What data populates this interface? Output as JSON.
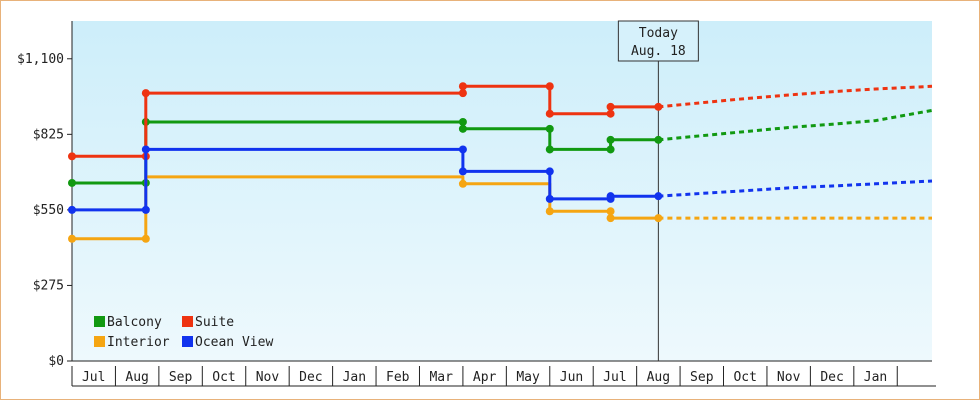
{
  "chart_data": {
    "type": "line",
    "title": "",
    "xlabel": "",
    "ylabel": "",
    "ylim": [
      0,
      1237.5
    ],
    "y_ticks": [
      {
        "value": 0,
        "label": "$0"
      },
      {
        "value": 275,
        "label": "$275"
      },
      {
        "value": 550,
        "label": "$550"
      },
      {
        "value": 825,
        "label": "$825"
      },
      {
        "value": 1100,
        "label": "$1,100"
      }
    ],
    "x_months": [
      "Jul",
      "Aug",
      "Sep",
      "Oct",
      "Nov",
      "Dec",
      "Jan",
      "Feb",
      "Mar",
      "Apr",
      "May",
      "Jun",
      "Jul",
      "Aug",
      "Sep",
      "Oct",
      "Nov",
      "Dec",
      "Jan"
    ],
    "x_range": [
      -0.5,
      19.3
    ],
    "grid": false,
    "legend_position": "bottom-left",
    "today": {
      "line1": "Today",
      "line2": "Aug. 18",
      "x": 13.0
    },
    "series": [
      {
        "name": "Balcony",
        "color": "#119911",
        "points": [
          [
            -0.5,
            648
          ],
          [
            1.2,
            648
          ],
          [
            1.2,
            648
          ],
          [
            1.2,
            870
          ],
          [
            8.5,
            870
          ],
          [
            8.5,
            845
          ],
          [
            10.5,
            845
          ],
          [
            10.5,
            770
          ],
          [
            11.9,
            770
          ],
          [
            11.9,
            805
          ],
          [
            13.0,
            805
          ]
        ],
        "markers": [
          [
            -0.5,
            648
          ],
          [
            1.2,
            648
          ],
          [
            1.2,
            870
          ],
          [
            8.5,
            870
          ],
          [
            8.5,
            845
          ],
          [
            10.5,
            845
          ],
          [
            10.5,
            770
          ],
          [
            11.9,
            770
          ],
          [
            11.9,
            805
          ],
          [
            13.0,
            805
          ]
        ],
        "forecast": [
          [
            13.0,
            805
          ],
          [
            14,
            820
          ],
          [
            15,
            835
          ],
          [
            16,
            850
          ],
          [
            17,
            862
          ],
          [
            18,
            875
          ],
          [
            19.3,
            912
          ]
        ]
      },
      {
        "name": "Suite",
        "color": "#ee3311",
        "points": [
          [
            -0.5,
            745
          ],
          [
            1.2,
            745
          ],
          [
            1.2,
            975
          ],
          [
            8.5,
            975
          ],
          [
            8.5,
            1000
          ],
          [
            10.5,
            1000
          ],
          [
            10.5,
            900
          ],
          [
            11.9,
            900
          ],
          [
            11.9,
            925
          ],
          [
            13.0,
            925
          ]
        ],
        "markers": [
          [
            -0.5,
            745
          ],
          [
            1.2,
            745
          ],
          [
            1.2,
            975
          ],
          [
            8.5,
            975
          ],
          [
            8.5,
            1000
          ],
          [
            10.5,
            1000
          ],
          [
            10.5,
            900
          ],
          [
            11.9,
            900
          ],
          [
            11.9,
            925
          ],
          [
            13.0,
            925
          ]
        ],
        "forecast": [
          [
            13.0,
            925
          ],
          [
            14,
            940
          ],
          [
            15,
            955
          ],
          [
            16,
            968
          ],
          [
            17,
            980
          ],
          [
            18,
            990
          ],
          [
            19.3,
            1000
          ]
        ]
      },
      {
        "name": "Interior",
        "color": "#f5a512",
        "points": [
          [
            -0.5,
            445
          ],
          [
            1.2,
            445
          ],
          [
            1.2,
            670
          ],
          [
            8.5,
            670
          ],
          [
            8.5,
            645
          ],
          [
            10.5,
            645
          ],
          [
            10.5,
            545
          ],
          [
            11.9,
            545
          ],
          [
            11.9,
            520
          ],
          [
            13.0,
            520
          ]
        ],
        "markers": [
          [
            -0.5,
            445
          ],
          [
            1.2,
            445
          ],
          [
            8.5,
            645
          ],
          [
            10.5,
            545
          ],
          [
            11.9,
            545
          ],
          [
            11.9,
            520
          ],
          [
            13.0,
            520
          ]
        ],
        "forecast": [
          [
            13.0,
            520
          ],
          [
            19.3,
            520
          ]
        ]
      },
      {
        "name": "Ocean View",
        "color": "#1133ee",
        "points": [
          [
            -0.5,
            550
          ],
          [
            1.2,
            550
          ],
          [
            1.2,
            770
          ],
          [
            8.5,
            770
          ],
          [
            8.5,
            690
          ],
          [
            10.5,
            690
          ],
          [
            10.5,
            590
          ],
          [
            11.9,
            590
          ],
          [
            11.9,
            600
          ],
          [
            13.0,
            600
          ]
        ],
        "markers": [
          [
            -0.5,
            550
          ],
          [
            1.2,
            550
          ],
          [
            1.2,
            770
          ],
          [
            8.5,
            770
          ],
          [
            8.5,
            690
          ],
          [
            10.5,
            690
          ],
          [
            10.5,
            590
          ],
          [
            11.9,
            590
          ],
          [
            11.9,
            600
          ],
          [
            13.0,
            600
          ]
        ],
        "forecast": [
          [
            13.0,
            600
          ],
          [
            14,
            610
          ],
          [
            15,
            620
          ],
          [
            16,
            630
          ],
          [
            17,
            637
          ],
          [
            18,
            645
          ],
          [
            19.3,
            655
          ]
        ]
      }
    ],
    "legend_order": [
      "Balcony",
      "Suite",
      "Interior",
      "Ocean View"
    ]
  }
}
